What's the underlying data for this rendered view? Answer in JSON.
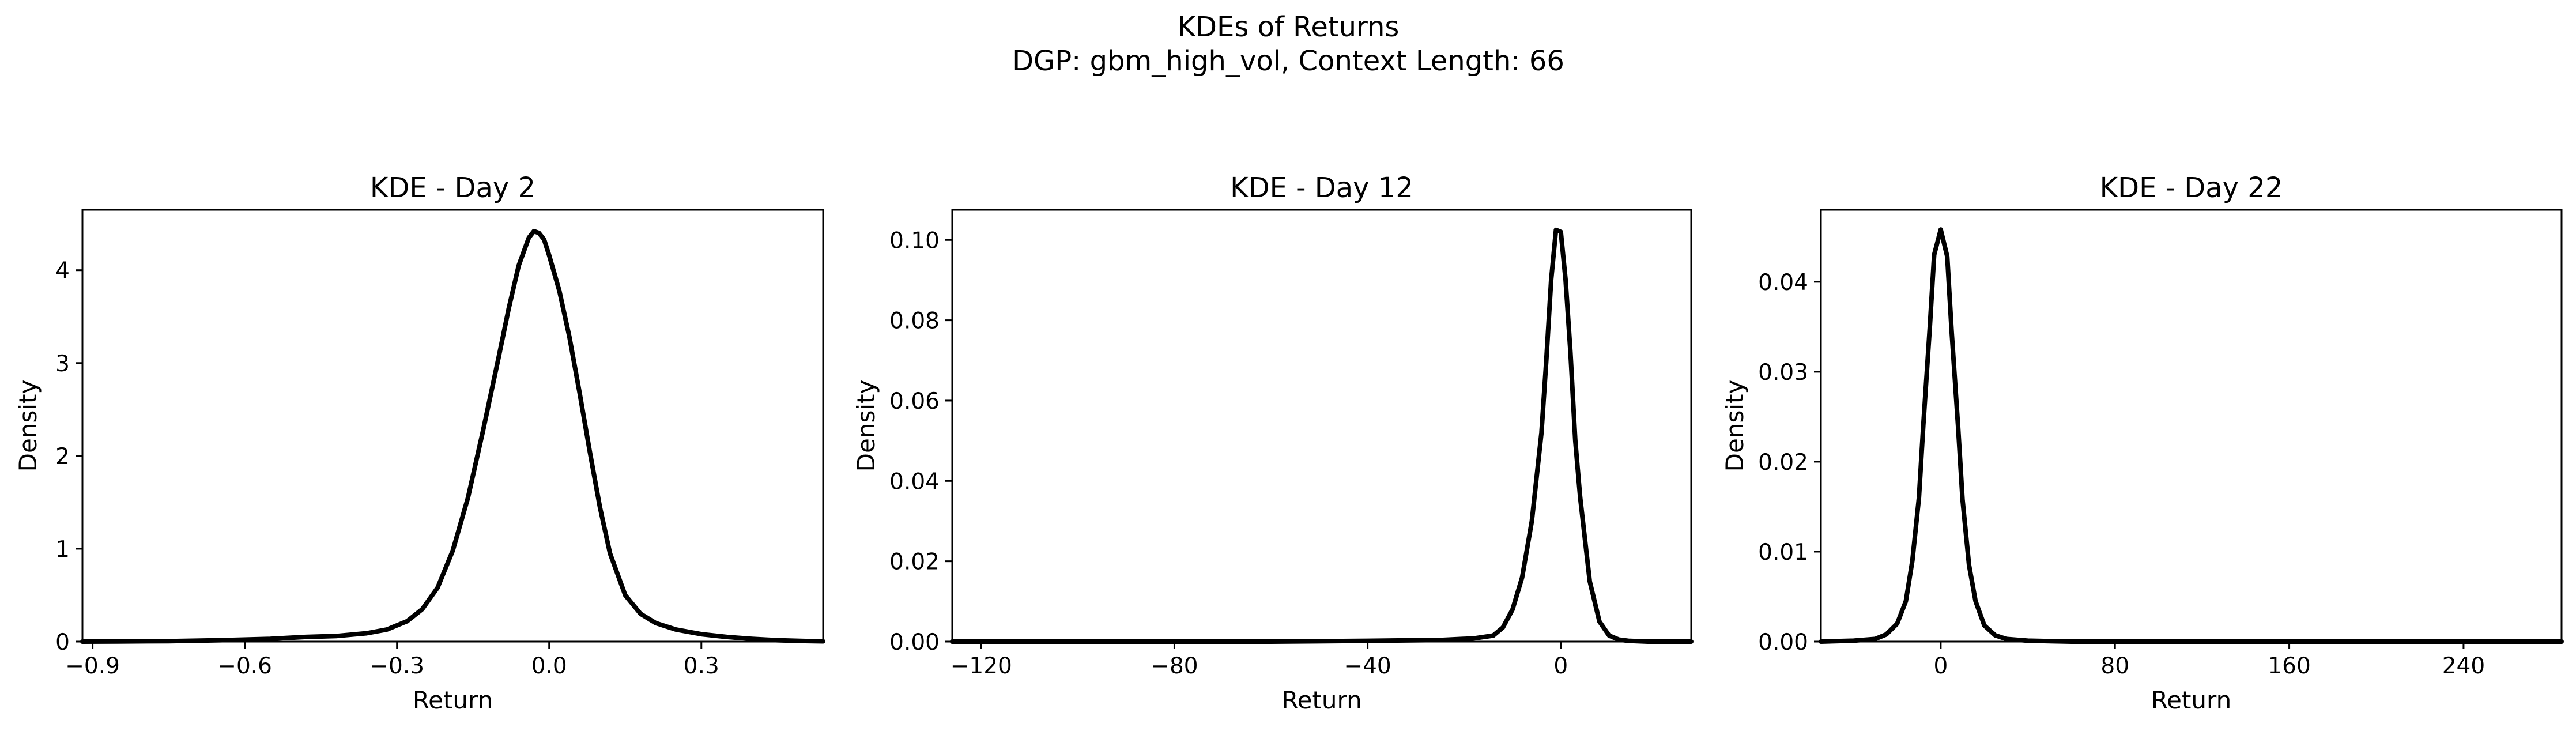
{
  "figure": {
    "title_line1": "KDEs of Returns",
    "title_line2": "DGP: gbm_high_vol, Context Length: 66"
  },
  "chart_data": [
    {
      "type": "line",
      "title": "KDE - Day 2",
      "xlabel": "Return",
      "ylabel": "Density",
      "xlim": [
        -0.92,
        0.54
      ],
      "ylim": [
        0,
        4.65
      ],
      "xticks": [
        -0.9,
        -0.6,
        -0.3,
        0.0,
        0.3
      ],
      "xtick_labels": [
        "−0.9",
        "−0.6",
        "−0.3",
        "0.0",
        "0.3"
      ],
      "yticks": [
        0,
        1,
        2,
        3,
        4
      ],
      "ytick_labels": [
        "0",
        "1",
        "2",
        "3",
        "4"
      ],
      "grid": false,
      "series": [
        {
          "x": [
            -0.92,
            -0.85,
            -0.75,
            -0.65,
            -0.55,
            -0.48,
            -0.42,
            -0.36,
            -0.32,
            -0.28,
            -0.25,
            -0.22,
            -0.19,
            -0.16,
            -0.13,
            -0.1,
            -0.08,
            -0.06,
            -0.04,
            -0.03,
            -0.02,
            -0.01,
            0.0,
            0.02,
            0.04,
            0.06,
            0.08,
            0.1,
            0.12,
            0.15,
            0.18,
            0.21,
            0.25,
            0.3,
            0.35,
            0.4,
            0.45,
            0.5,
            0.54
          ],
          "y": [
            0.0,
            0.002,
            0.005,
            0.015,
            0.03,
            0.05,
            0.06,
            0.09,
            0.13,
            0.22,
            0.35,
            0.58,
            0.98,
            1.55,
            2.28,
            3.05,
            3.58,
            4.05,
            4.35,
            4.42,
            4.4,
            4.33,
            4.16,
            3.78,
            3.28,
            2.68,
            2.05,
            1.45,
            0.95,
            0.5,
            0.3,
            0.2,
            0.13,
            0.08,
            0.05,
            0.03,
            0.015,
            0.007,
            0.003
          ]
        }
      ]
    },
    {
      "type": "line",
      "title": "KDE - Day 12",
      "xlabel": "Return",
      "ylabel": "Density",
      "xlim": [
        -126,
        27
      ],
      "ylim": [
        0,
        0.1075
      ],
      "xticks": [
        -120,
        -80,
        -40,
        0
      ],
      "xtick_labels": [
        "−120",
        "−80",
        "−40",
        "0"
      ],
      "yticks": [
        0.0,
        0.02,
        0.04,
        0.06,
        0.08,
        0.1
      ],
      "ytick_labels": [
        "0.00",
        "0.02",
        "0.04",
        "0.06",
        "0.08",
        "0.10"
      ],
      "grid": false,
      "series": [
        {
          "x": [
            -126,
            -100,
            -80,
            -60,
            -40,
            -25,
            -18,
            -14,
            -12,
            -10,
            -8,
            -6,
            -4,
            -3,
            -2,
            -1,
            0,
            1,
            2,
            3,
            4,
            6,
            8,
            10,
            12,
            14,
            18,
            27
          ],
          "y": [
            0.0,
            0.0,
            0.0,
            0.0,
            0.0002,
            0.0004,
            0.0008,
            0.0015,
            0.0035,
            0.008,
            0.016,
            0.03,
            0.052,
            0.07,
            0.09,
            0.1025,
            0.102,
            0.09,
            0.072,
            0.05,
            0.036,
            0.015,
            0.005,
            0.0015,
            0.0005,
            0.0002,
            0.0,
            0.0
          ]
        }
      ]
    },
    {
      "type": "line",
      "title": "KDE - Day 22",
      "xlabel": "Return",
      "ylabel": "Density",
      "xlim": [
        -55,
        285
      ],
      "ylim": [
        0,
        0.048
      ],
      "xticks": [
        0,
        80,
        160,
        240
      ],
      "xtick_labels": [
        "0",
        "80",
        "160",
        "240"
      ],
      "yticks": [
        0.0,
        0.01,
        0.02,
        0.03,
        0.04
      ],
      "ytick_labels": [
        "0.00",
        "0.01",
        "0.02",
        "0.03",
        "0.04"
      ],
      "grid": false,
      "series": [
        {
          "x": [
            -55,
            -40,
            -30,
            -25,
            -20,
            -16,
            -13,
            -10,
            -8,
            -5,
            -3,
            0,
            3,
            5,
            8,
            10,
            13,
            16,
            20,
            25,
            30,
            40,
            60,
            100,
            200,
            285
          ],
          "y": [
            0.0,
            0.0001,
            0.0003,
            0.0008,
            0.002,
            0.0045,
            0.009,
            0.016,
            0.024,
            0.035,
            0.043,
            0.0458,
            0.0428,
            0.0345,
            0.0238,
            0.0158,
            0.0085,
            0.0045,
            0.0018,
            0.0007,
            0.0003,
            0.0001,
            0.0,
            0.0,
            0.0,
            0.0
          ]
        }
      ]
    }
  ]
}
